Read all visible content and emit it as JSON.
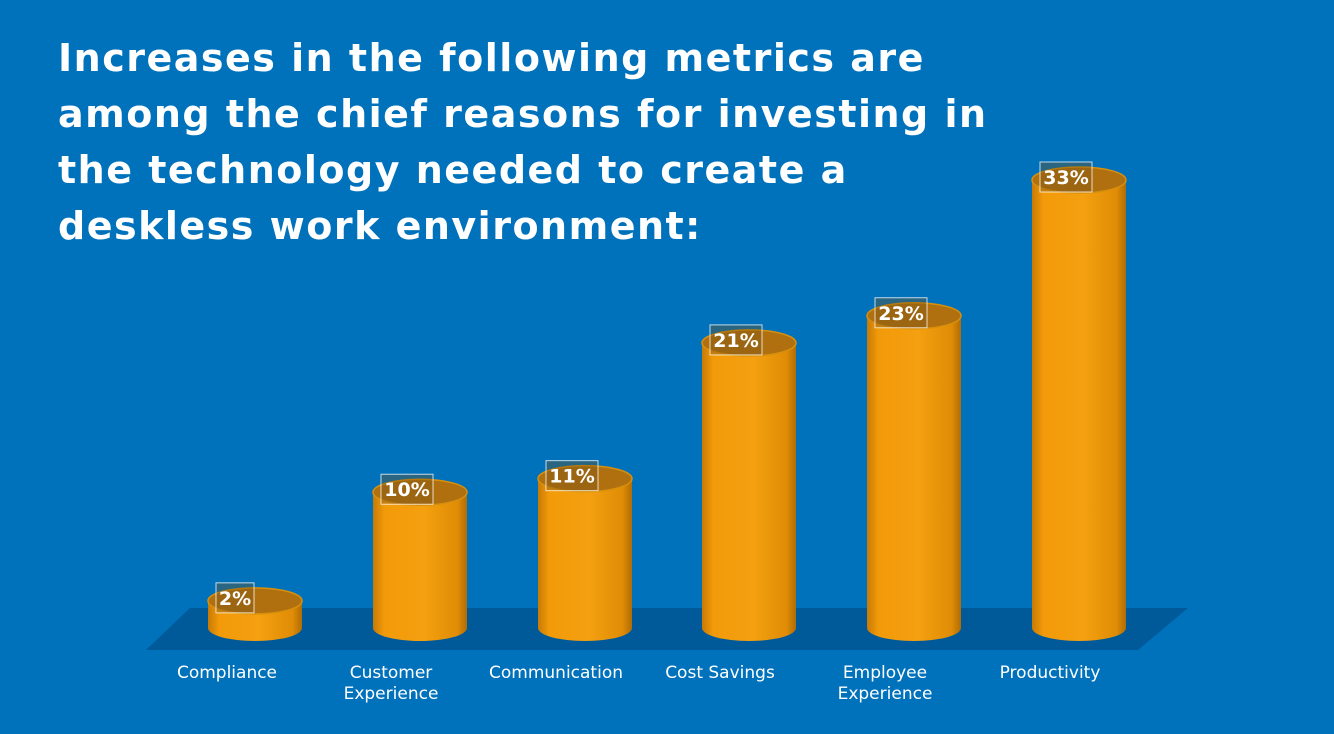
{
  "title": "Increases in the following metrics are among the chief reasons for investing in the technology needed to create a deskless work environment:",
  "colors": {
    "background": "#0072BC",
    "bar": "#F29A0A",
    "bar_top": "#B07010",
    "floor": "#005A9A",
    "text": "#FFFFFF"
  },
  "chart_data": {
    "type": "bar",
    "style": "3d-cylinder",
    "categories": [
      [
        "Compliance"
      ],
      [
        "Customer",
        "Experience"
      ],
      [
        "Communication"
      ],
      [
        "Cost Savings"
      ],
      [
        "Employee",
        "Experience"
      ],
      [
        "Productivity"
      ]
    ],
    "values": [
      2,
      10,
      11,
      21,
      23,
      33
    ],
    "value_labels": [
      "2%",
      "10%",
      "11%",
      "21%",
      "23%",
      "33%"
    ],
    "unit": "%",
    "ylim": [
      0,
      33
    ],
    "grid": false,
    "legend": "none"
  }
}
